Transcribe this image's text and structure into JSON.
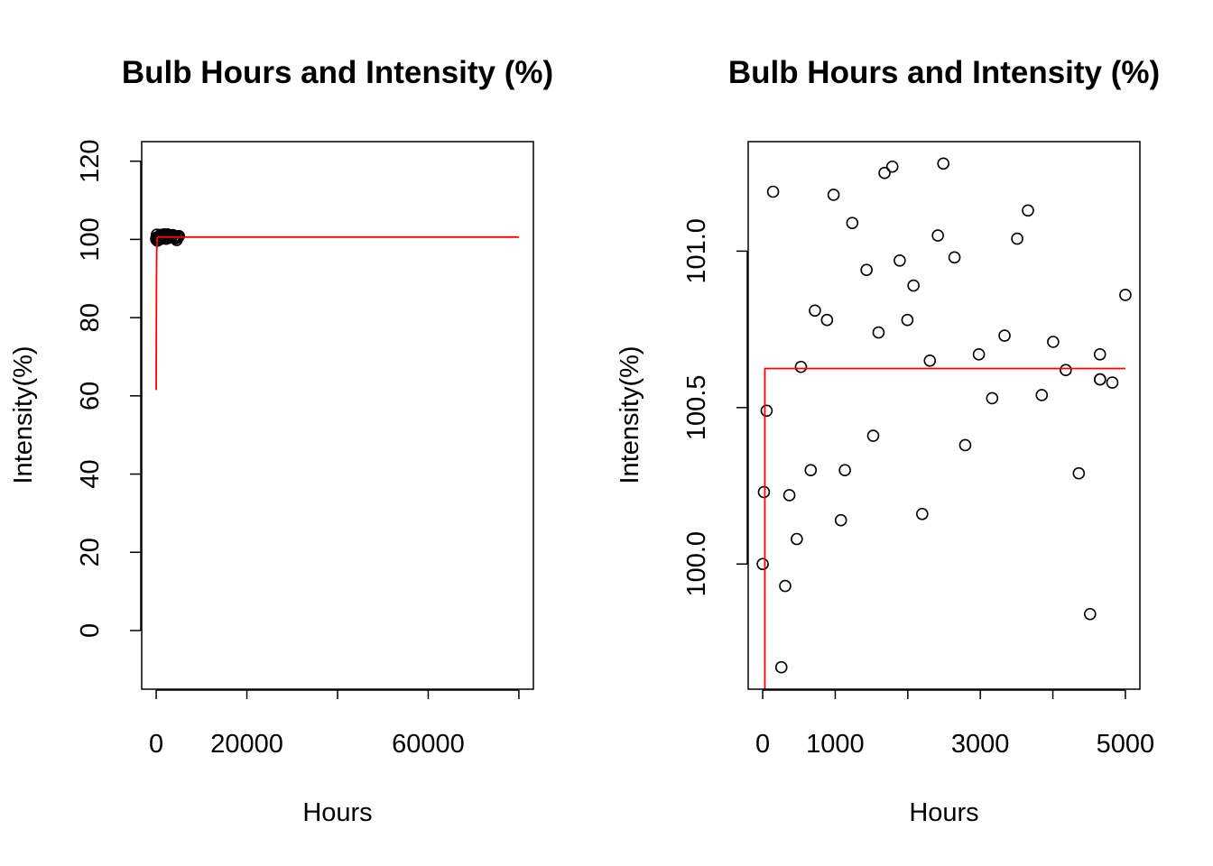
{
  "chart_data": [
    {
      "type": "scatter",
      "title": "Bulb Hours and Intensity (%)",
      "xlabel": "Hours",
      "ylabel": "Intensity(%)",
      "xlim": [
        -3200,
        83200
      ],
      "ylim": [
        -15,
        125
      ],
      "xticks": [
        0,
        20000,
        40000,
        60000,
        80000
      ],
      "xtick_labels": [
        "0",
        "20000",
        "",
        "60000",
        ""
      ],
      "yticks": [
        0,
        20,
        40,
        60,
        80,
        100,
        120
      ],
      "ytick_labels": [
        "0",
        "20",
        "40",
        "60",
        "80",
        "100",
        "120"
      ],
      "grid": false,
      "point_color": "#000000",
      "fit_line_color": "#ff0000",
      "points": {
        "x": [
          0,
          17,
          54,
          143,
          257,
          310,
          367,
          470,
          527,
          662,
          720,
          887,
          977,
          1078,
          1133,
          1235,
          1432,
          1523,
          1597,
          1680,
          1787,
          1889,
          1995,
          2079,
          2199,
          2304,
          2415,
          2490,
          2644,
          2792,
          2980,
          3163,
          3334,
          3509,
          3657,
          3847,
          4004,
          4178,
          4358,
          4513,
          4649,
          4650,
          4651,
          4820,
          5000
        ],
        "y": [
          100.0,
          100.23,
          100.49,
          101.19,
          99.67,
          99.93,
          100.22,
          100.08,
          100.63,
          100.3,
          100.81,
          100.78,
          101.18,
          100.14,
          100.3,
          101.09,
          100.94,
          100.41,
          100.74,
          101.25,
          101.27,
          100.97,
          100.78,
          100.89,
          100.16,
          100.65,
          101.05,
          101.28,
          100.98,
          100.38,
          100.67,
          100.53,
          100.73,
          101.04,
          101.13,
          100.54,
          100.71,
          100.62,
          100.29,
          99.84,
          100.67,
          100.59,
          100.59,
          100.58,
          100.86
        ]
      },
      "fit_line": {
        "x": [
          0,
          30,
          60,
          100,
          200,
          400,
          1000,
          5000,
          20000,
          50000,
          80000
        ],
        "y": [
          61.5,
          80,
          90,
          96,
          100.3,
          100.6,
          100.6,
          100.6,
          100.6,
          100.6,
          100.6
        ]
      }
    },
    {
      "type": "scatter",
      "title": "Bulb Hours and Intensity (%)",
      "xlabel": "Hours",
      "ylabel": "Intensity(%)",
      "xlim": [
        -200,
        5200
      ],
      "ylim": [
        99.6,
        101.35
      ],
      "xticks": [
        0,
        1000,
        2000,
        3000,
        4000,
        5000
      ],
      "xtick_labels": [
        "0",
        "1000",
        "",
        "3000",
        "",
        "5000"
      ],
      "yticks": [
        100.0,
        100.5,
        101.0
      ],
      "ytick_labels": [
        "100.0",
        "100.5",
        "101.0"
      ],
      "grid": false,
      "point_color": "#000000",
      "fit_line_color": "#ff0000",
      "points": {
        "x": [
          0,
          17,
          54,
          143,
          257,
          310,
          367,
          470,
          527,
          662,
          720,
          887,
          977,
          1078,
          1133,
          1235,
          1432,
          1523,
          1597,
          1680,
          1787,
          1889,
          1995,
          2079,
          2199,
          2304,
          2415,
          2490,
          2644,
          2792,
          2980,
          3163,
          3334,
          3509,
          3657,
          3847,
          4004,
          4178,
          4358,
          4513,
          4649,
          4650,
          4651,
          4820,
          5000
        ],
        "y": [
          100.0,
          100.23,
          100.49,
          101.19,
          99.67,
          99.93,
          100.22,
          100.08,
          100.63,
          100.3,
          100.81,
          100.78,
          101.18,
          100.14,
          100.3,
          101.09,
          100.94,
          100.41,
          100.74,
          101.25,
          101.27,
          100.97,
          100.78,
          100.89,
          100.16,
          100.65,
          101.05,
          101.28,
          100.98,
          100.38,
          100.67,
          100.53,
          100.73,
          101.04,
          101.13,
          100.54,
          100.71,
          100.62,
          100.29,
          99.84,
          100.67,
          100.59,
          100.59,
          100.58,
          100.86
        ]
      },
      "fit_line": {
        "x": [
          30,
          30,
          30,
          5000
        ],
        "y": [
          99.6,
          100.0,
          100.625,
          100.625
        ]
      }
    }
  ]
}
